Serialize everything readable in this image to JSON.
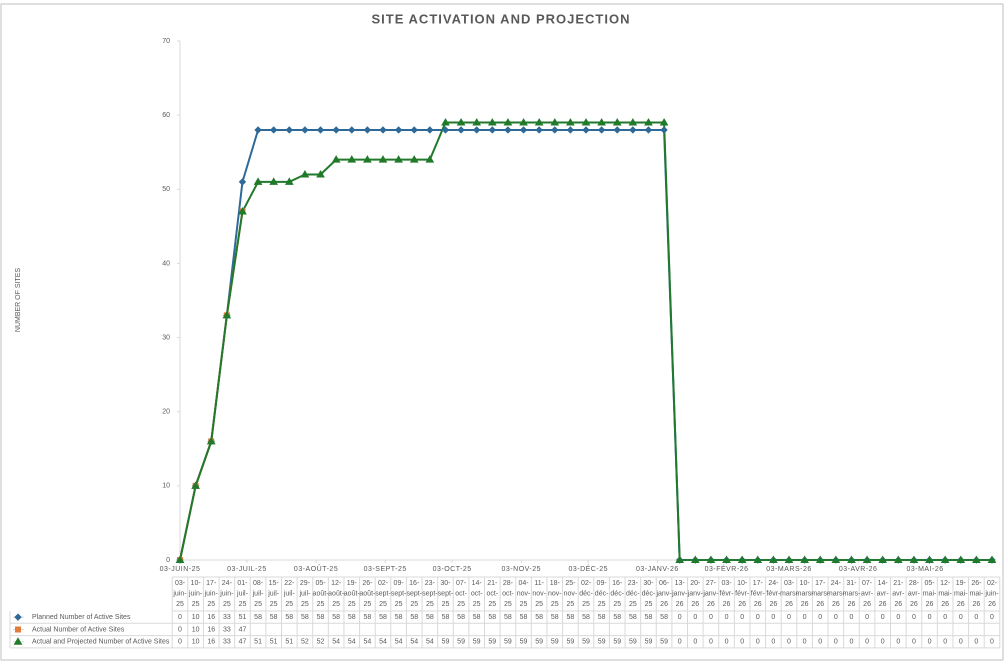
{
  "chart_data": {
    "type": "line",
    "title": "SITE ACTIVATION AND PROJECTION",
    "y_label": "NUMBER OF SITES",
    "ylim": [
      0,
      70
    ],
    "yticks": [
      0,
      10,
      20,
      30,
      40,
      50,
      60,
      70
    ],
    "grid": false,
    "xlim": [
      "2025-06-03",
      "2026-06-02"
    ],
    "xticks": [
      {
        "value": "2025-06-03",
        "label": "03-JUIN-25"
      },
      {
        "value": "2025-07-03",
        "label": "03-JUIL-25"
      },
      {
        "value": "2025-08-03",
        "label": "03-AOÛT-25"
      },
      {
        "value": "2025-09-03",
        "label": "03-SEPT-25"
      },
      {
        "value": "2025-10-03",
        "label": "03-OCT-25"
      },
      {
        "value": "2025-11-03",
        "label": "03-NOV-25"
      },
      {
        "value": "2025-12-03",
        "label": "03-DÉC-25"
      },
      {
        "value": "2026-01-03",
        "label": "03-JANV-26"
      },
      {
        "value": "2026-02-03",
        "label": "03-FÉVR-26"
      },
      {
        "value": "2026-03-03",
        "label": "03-MARS-26"
      },
      {
        "value": "2026-04-03",
        "label": "03-AVR-26"
      },
      {
        "value": "2026-05-03",
        "label": "03-MAI-26"
      }
    ],
    "x": [
      "2025-06-03",
      "2025-06-10",
      "2025-06-17",
      "2025-06-24",
      "2025-07-01",
      "2025-07-08",
      "2025-07-15",
      "2025-07-22",
      "2025-07-29",
      "2025-08-05",
      "2025-08-12",
      "2025-08-19",
      "2025-08-26",
      "2025-09-02",
      "2025-09-09",
      "2025-09-16",
      "2025-09-23",
      "2025-09-30",
      "2025-10-07",
      "2025-10-14",
      "2025-10-21",
      "2025-10-28",
      "2025-11-04",
      "2025-11-11",
      "2025-11-18",
      "2025-11-25",
      "2025-12-02",
      "2025-12-09",
      "2025-12-16",
      "2025-12-23",
      "2025-12-30",
      "2026-01-06",
      "2026-01-13",
      "2026-01-20",
      "2026-01-27",
      "2026-02-03",
      "2026-02-10",
      "2026-02-17",
      "2026-02-24",
      "2026-03-03",
      "2026-03-10",
      "2026-03-17",
      "2026-03-24",
      "2026-03-31",
      "2026-04-07",
      "2026-04-14",
      "2026-04-21",
      "2026-04-28",
      "2026-05-05",
      "2026-05-12",
      "2026-05-19",
      "2026-05-26",
      "2026-06-02"
    ],
    "categories": [
      "03-juin-25",
      "10-juin-25",
      "17-juin-25",
      "24-juin-25",
      "01-juil-25",
      "08-juil-25",
      "15-juil-25",
      "22-juil-25",
      "29-juil-25",
      "05-août-25",
      "12-août-25",
      "19-août-25",
      "26-août-25",
      "02-sept-25",
      "09-sept-25",
      "16-sept-25",
      "23-sept-25",
      "30-sept-25",
      "07-oct-25",
      "14-oct-25",
      "21-oct-25",
      "28-oct-25",
      "04-nov-25",
      "11-nov-25",
      "18-nov-25",
      "25-nov-25",
      "02-déc-25",
      "09-déc-25",
      "16-déc-25",
      "23-déc-25",
      "30-déc-25",
      "06-janv-26",
      "13-janv-26",
      "20-janv-26",
      "27-janv-26",
      "03-févr-26",
      "10-févr-26",
      "17-févr-26",
      "24-févr-26",
      "03-mars-26",
      "10-mars-26",
      "17-mars-26",
      "24-mars-26",
      "31-mars-26",
      "07-avr-26",
      "14-avr-26",
      "21-avr-26",
      "28-avr-26",
      "05-mai-26",
      "12-mai-26",
      "19-mai-26",
      "26-mai-26",
      "02-juin-26"
    ],
    "series": [
      {
        "name": "Planned Number of Active Sites",
        "color": "#2e6a99",
        "marker": "diamond",
        "values": [
          0,
          10,
          16,
          33,
          51,
          58,
          58,
          58,
          58,
          58,
          58,
          58,
          58,
          58,
          58,
          58,
          58,
          58,
          58,
          58,
          58,
          58,
          58,
          58,
          58,
          58,
          58,
          58,
          58,
          58,
          58,
          58,
          0,
          0,
          0,
          0,
          0,
          0,
          0,
          0,
          0,
          0,
          0,
          0,
          0,
          0,
          0,
          0,
          0,
          0,
          0,
          0,
          0
        ]
      },
      {
        "name": "Actual Number of Active Sites",
        "color": "#e07b39",
        "marker": "square",
        "values": [
          0,
          10,
          16,
          33,
          47,
          null,
          null,
          null,
          null,
          null,
          null,
          null,
          null,
          null,
          null,
          null,
          null,
          null,
          null,
          null,
          null,
          null,
          null,
          null,
          null,
          null,
          null,
          null,
          null,
          null,
          null,
          null,
          null,
          null,
          null,
          null,
          null,
          null,
          null,
          null,
          null,
          null,
          null,
          null,
          null,
          null,
          null,
          null,
          null,
          null,
          null,
          null,
          null
        ]
      },
      {
        "name": "Actual and Projected Number of Active Sites",
        "color": "#217a2b",
        "marker": "triangle",
        "values": [
          0,
          10,
          16,
          33,
          47,
          51,
          51,
          51,
          52,
          52,
          54,
          54,
          54,
          54,
          54,
          54,
          54,
          59,
          59,
          59,
          59,
          59,
          59,
          59,
          59,
          59,
          59,
          59,
          59,
          59,
          59,
          59,
          0,
          0,
          0,
          0,
          0,
          0,
          0,
          0,
          0,
          0,
          0,
          0,
          0,
          0,
          0,
          0,
          0,
          0,
          0,
          0,
          0
        ]
      }
    ]
  }
}
